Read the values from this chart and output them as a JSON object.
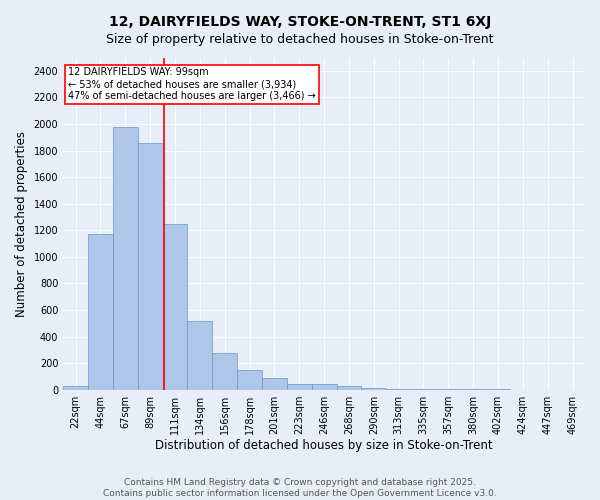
{
  "title1": "12, DAIRYFIELDS WAY, STOKE-ON-TRENT, ST1 6XJ",
  "title2": "Size of property relative to detached houses in Stoke-on-Trent",
  "xlabel": "Distribution of detached houses by size in Stoke-on-Trent",
  "ylabel": "Number of detached properties",
  "categories": [
    "22sqm",
    "44sqm",
    "67sqm",
    "89sqm",
    "111sqm",
    "134sqm",
    "156sqm",
    "178sqm",
    "201sqm",
    "223sqm",
    "246sqm",
    "268sqm",
    "290sqm",
    "313sqm",
    "335sqm",
    "357sqm",
    "380sqm",
    "402sqm",
    "424sqm",
    "447sqm",
    "469sqm"
  ],
  "values": [
    25,
    1170,
    1980,
    1860,
    1245,
    515,
    275,
    150,
    90,
    40,
    40,
    25,
    15,
    5,
    3,
    2,
    2,
    2,
    1,
    1,
    1
  ],
  "bar_color": "#aec6e8",
  "bar_edge_color": "#6699cc",
  "bar_width": 1.0,
  "property_line_x": 3.55,
  "annotation_text": "12 DAIRYFIELDS WAY: 99sqm\n← 53% of detached houses are smaller (3,934)\n47% of semi-detached houses are larger (3,466) →",
  "annotation_box_color": "white",
  "annotation_box_edge": "red",
  "vline_color": "red",
  "ylim": [
    0,
    2500
  ],
  "yticks": [
    0,
    200,
    400,
    600,
    800,
    1000,
    1200,
    1400,
    1600,
    1800,
    2000,
    2200,
    2400
  ],
  "background_color": "#e8eef8",
  "footnote": "Contains HM Land Registry data © Crown copyright and database right 2025.\nContains public sector information licensed under the Open Government Licence v3.0.",
  "title1_fontsize": 10,
  "title2_fontsize": 9,
  "xlabel_fontsize": 8.5,
  "ylabel_fontsize": 8.5,
  "tick_fontsize": 7,
  "footnote_fontsize": 6.5,
  "annotation_fontsize": 7
}
